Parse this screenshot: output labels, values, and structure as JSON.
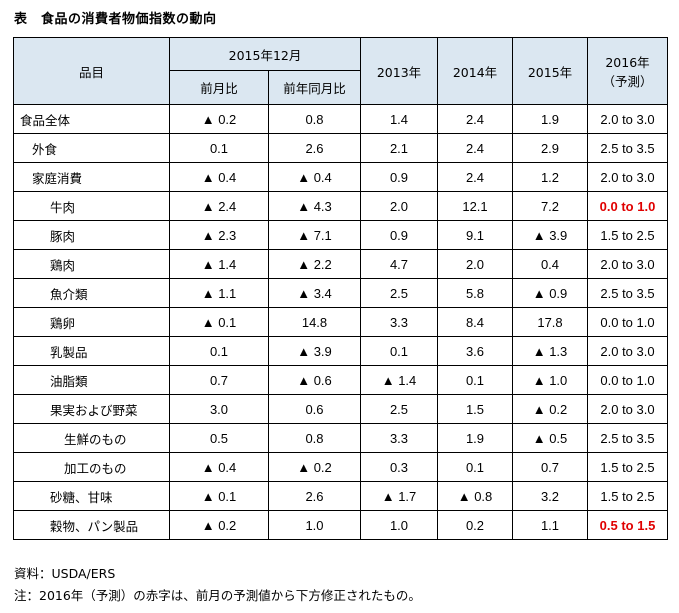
{
  "title": "表　食品の消費者物価指数の動向",
  "header": {
    "item": "品目",
    "group": "2015年12月",
    "mom": "前月比",
    "yoy": "前年同月比",
    "y2013": "2013年",
    "y2014": "2014年",
    "y2015": "2015年",
    "y2016": "2016年",
    "y2016_sub": "（予測）"
  },
  "rows": [
    {
      "name": "食品全体",
      "level": 0,
      "v": [
        "▲ 0.2",
        "0.8",
        "1.4",
        "2.4",
        "1.9",
        "2.0 to 3.0"
      ],
      "forecast_revised": false
    },
    {
      "name": "外食",
      "level": 1,
      "v": [
        "0.1",
        "2.6",
        "2.1",
        "2.4",
        "2.9",
        "2.5 to 3.5"
      ],
      "forecast_revised": false
    },
    {
      "name": "家庭消費",
      "level": 1,
      "v": [
        "▲ 0.4",
        "▲ 0.4",
        "0.9",
        "2.4",
        "1.2",
        "2.0 to 3.0"
      ],
      "forecast_revised": false
    },
    {
      "name": "牛肉",
      "level": 2,
      "v": [
        "▲ 2.4",
        "▲ 4.3",
        "2.0",
        "12.1",
        "7.2",
        "0.0 to 1.0"
      ],
      "forecast_revised": true
    },
    {
      "name": "豚肉",
      "level": 2,
      "v": [
        "▲ 2.3",
        "▲ 7.1",
        "0.9",
        "9.1",
        "▲ 3.9",
        "1.5 to 2.5"
      ],
      "forecast_revised": false
    },
    {
      "name": "鶏肉",
      "level": 2,
      "v": [
        "▲ 1.4",
        "▲ 2.2",
        "4.7",
        "2.0",
        "0.4",
        "2.0 to 3.0"
      ],
      "forecast_revised": false
    },
    {
      "name": "魚介類",
      "level": 2,
      "v": [
        "▲ 1.1",
        "▲ 3.4",
        "2.5",
        "5.8",
        "▲ 0.9",
        "2.5 to 3.5"
      ],
      "forecast_revised": false
    },
    {
      "name": "鶏卵",
      "level": 2,
      "v": [
        "▲ 0.1",
        "14.8",
        "3.3",
        "8.4",
        "17.8",
        "0.0 to 1.0"
      ],
      "forecast_revised": false
    },
    {
      "name": "乳製品",
      "level": 2,
      "v": [
        "0.1",
        "▲ 3.9",
        "0.1",
        "3.6",
        "▲ 1.3",
        "2.0 to 3.0"
      ],
      "forecast_revised": false
    },
    {
      "name": "油脂類",
      "level": 2,
      "v": [
        "0.7",
        "▲ 0.6",
        "▲ 1.4",
        "0.1",
        "▲ 1.0",
        "0.0 to 1.0"
      ],
      "forecast_revised": false
    },
    {
      "name": "果実および野菜",
      "level": 2,
      "v": [
        "3.0",
        "0.6",
        "2.5",
        "1.5",
        "▲ 0.2",
        "2.0 to 3.0"
      ],
      "forecast_revised": false
    },
    {
      "name": "生鮮のもの",
      "level": 3,
      "v": [
        "0.5",
        "0.8",
        "3.3",
        "1.9",
        "▲ 0.5",
        "2.5 to 3.5"
      ],
      "forecast_revised": false
    },
    {
      "name": "加工のもの",
      "level": 3,
      "v": [
        "▲ 0.4",
        "▲ 0.2",
        "0.3",
        "0.1",
        "0.7",
        "1.5 to 2.5"
      ],
      "forecast_revised": false
    },
    {
      "name": "砂糖、甘味",
      "level": 2,
      "v": [
        "▲ 0.1",
        "2.6",
        "▲ 1.7",
        "▲ 0.8",
        "3.2",
        "1.5 to 2.5"
      ],
      "forecast_revised": false
    },
    {
      "name": "穀物、パン製品",
      "level": 2,
      "v": [
        "▲ 0.2",
        "1.0",
        "1.0",
        "0.2",
        "1.1",
        "0.5 to 1.5"
      ],
      "forecast_revised": true
    }
  ],
  "footer": {
    "source": "資料：USDA/ERS",
    "note": "注：2016年（予測）の赤字は、前月の予測値から下方修正されたもの。"
  },
  "colors": {
    "header_bg": "#dbe7f1",
    "revised_text": "#e00000",
    "border": "#000000"
  }
}
